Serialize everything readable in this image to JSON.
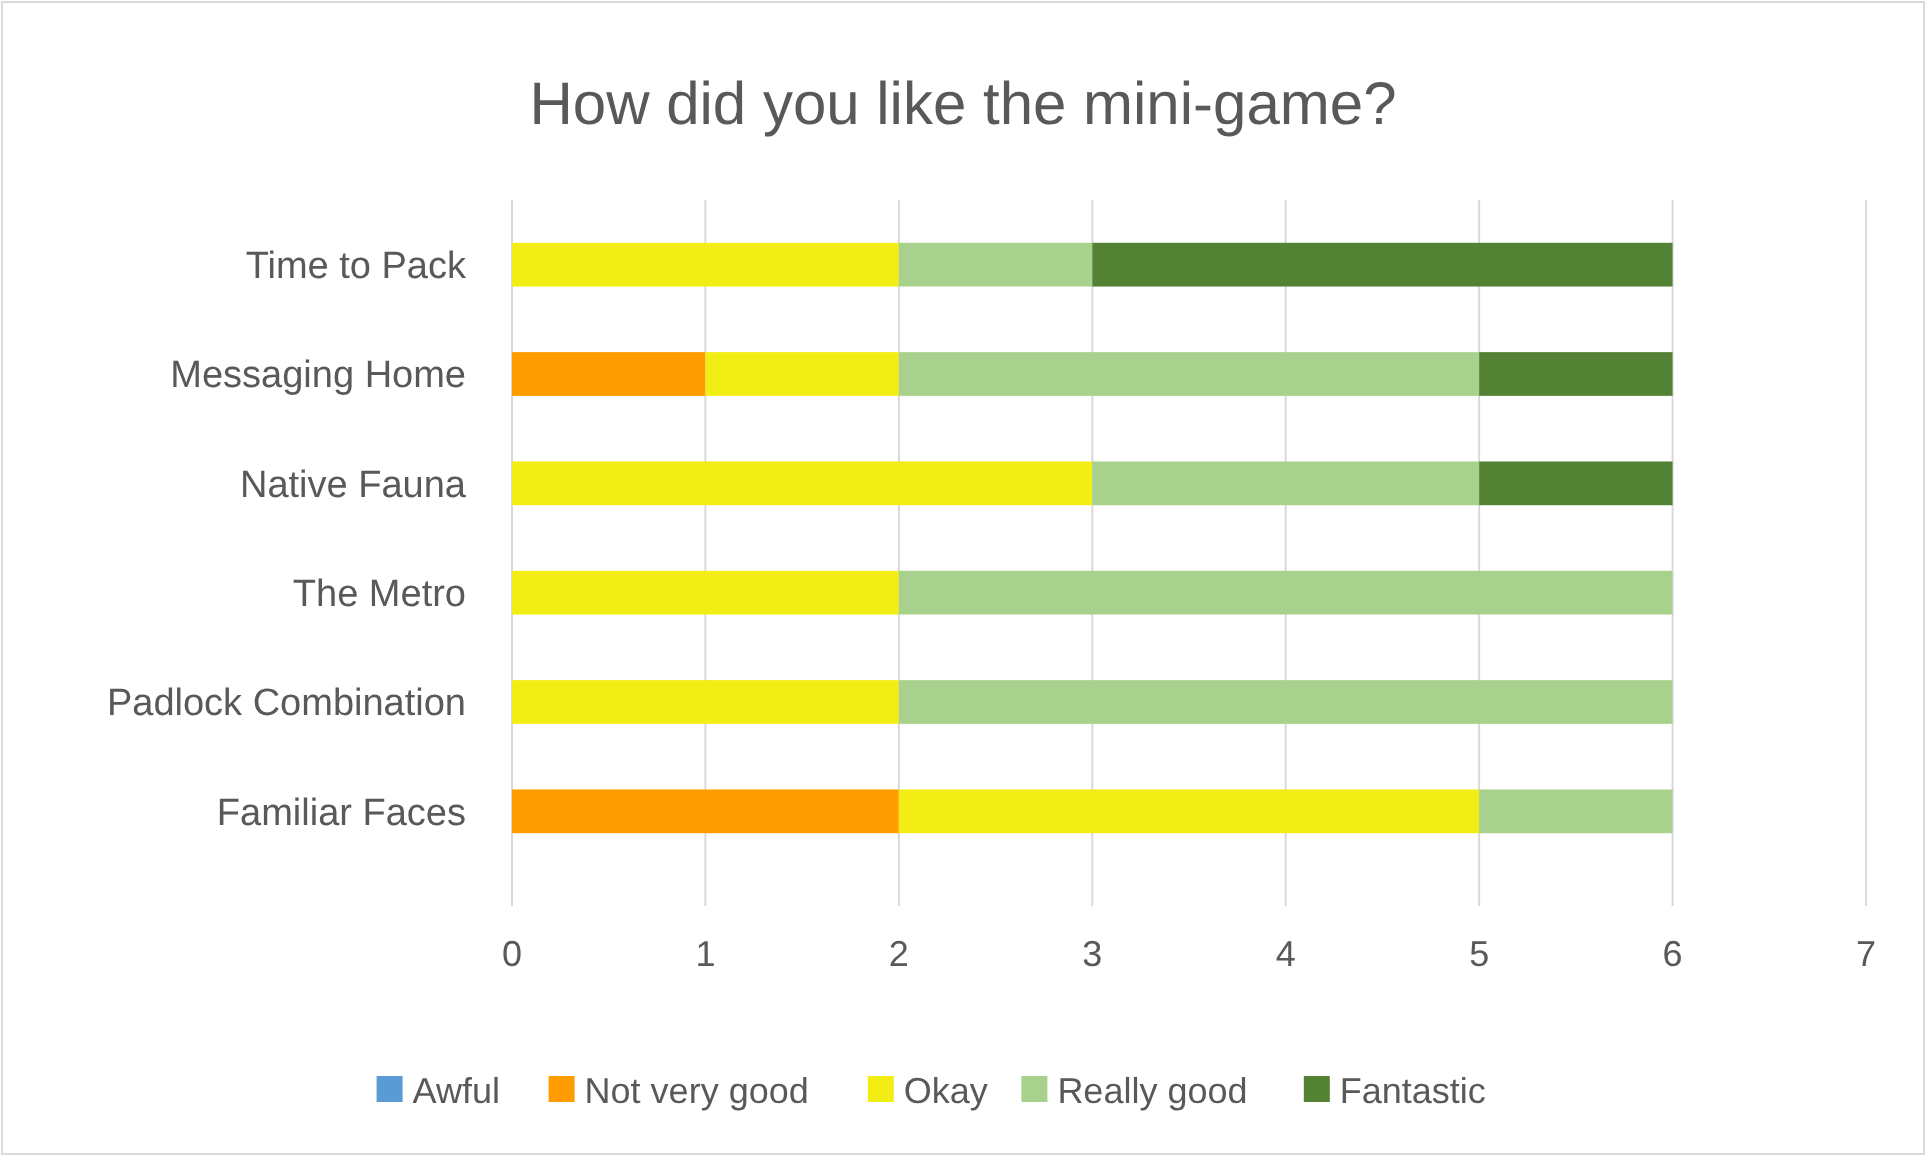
{
  "chart_data": {
    "type": "bar",
    "title": "How did you like the mini-game?",
    "orientation": "horizontal",
    "stacked": true,
    "categories": [
      "Time to Pack",
      "Messaging Home",
      "Native Fauna",
      "The Metro",
      "Padlock Combination",
      "Familiar Faces"
    ],
    "series": [
      {
        "name": "Awful",
        "color": "#5b9bd5",
        "values": [
          0,
          0,
          0,
          0,
          0,
          0
        ]
      },
      {
        "name": "Not very good",
        "color": "#ff9c00",
        "values": [
          0,
          1,
          0,
          0,
          0,
          2
        ]
      },
      {
        "name": "Okay",
        "color": "#f2ee15",
        "values": [
          2,
          1,
          3,
          2,
          2,
          3
        ]
      },
      {
        "name": "Really good",
        "color": "#a9d18e",
        "values": [
          1,
          3,
          2,
          4,
          4,
          1
        ]
      },
      {
        "name": "Fantastic",
        "color": "#548235",
        "values": [
          3,
          1,
          1,
          0,
          0,
          0
        ]
      }
    ],
    "xlim": [
      0,
      7
    ],
    "xticks": [
      0,
      1,
      2,
      3,
      4,
      5,
      6,
      7
    ],
    "grid": "x",
    "legend": "bottom"
  }
}
